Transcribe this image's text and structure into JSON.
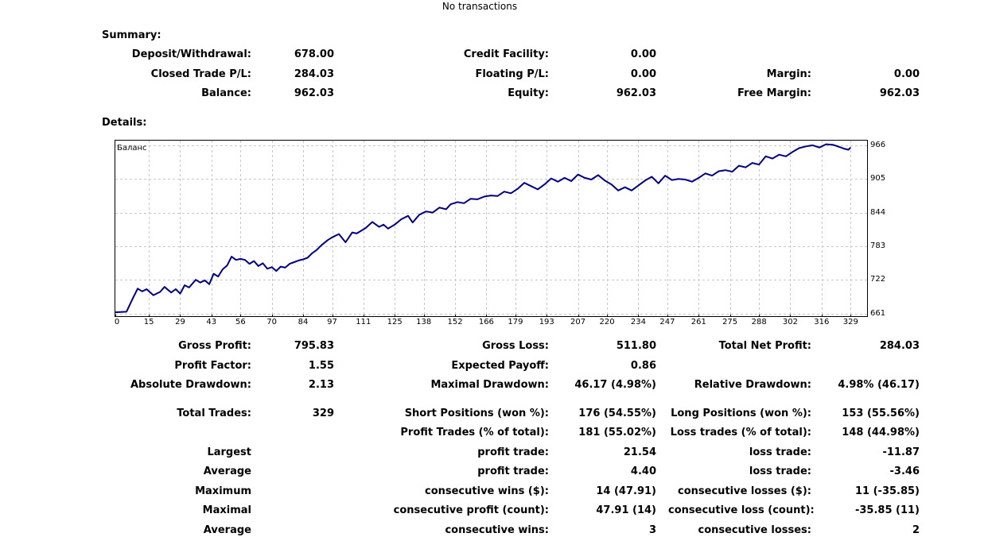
{
  "header": {
    "status": "No transactions"
  },
  "summary": {
    "title": "Summary:",
    "rows": [
      [
        {
          "label": "Deposit/Withdrawal:",
          "value": "678.00"
        },
        {
          "label": "Credit Facility:",
          "value": "0.00"
        },
        {
          "label": "",
          "value": ""
        }
      ],
      [
        {
          "label": "Closed Trade P/L:",
          "value": "284.03"
        },
        {
          "label": "Floating P/L:",
          "value": "0.00"
        },
        {
          "label": "Margin:",
          "value": "0.00"
        }
      ],
      [
        {
          "label": "Balance:",
          "value": "962.03"
        },
        {
          "label": "Equity:",
          "value": "962.03"
        },
        {
          "label": "Free Margin:",
          "value": "962.03"
        }
      ]
    ]
  },
  "details": {
    "title": "Details:",
    "rows": [
      [
        {
          "label": "Gross Profit:",
          "value": "795.83"
        },
        {
          "label": "Gross Loss:",
          "value": "511.80"
        },
        {
          "label": "Total Net Profit:",
          "value": "284.03"
        }
      ],
      [
        {
          "label": "Profit Factor:",
          "value": "1.55"
        },
        {
          "label": "Expected Payoff:",
          "value": "0.86"
        },
        {
          "label": "",
          "value": ""
        }
      ],
      [
        {
          "label": "Absolute Drawdown:",
          "value": "2.13"
        },
        {
          "label": "Maximal Drawdown:",
          "value": "46.17 (4.98%)"
        },
        {
          "label": "Relative Drawdown:",
          "value": "4.98% (46.17)"
        }
      ],
      [
        {
          "label": "Total Trades:",
          "value": "329"
        },
        {
          "label": "Short Positions (won %):",
          "value": "176 (54.55%)"
        },
        {
          "label": "Long Positions (won %):",
          "value": "153 (55.56%)"
        }
      ],
      [
        {
          "label": "",
          "value": ""
        },
        {
          "label": "Profit Trades (% of total):",
          "value": "181 (55.02%)"
        },
        {
          "label": "Loss trades (% of total):",
          "value": "148 (44.98%)"
        }
      ],
      [
        {
          "label": "Largest",
          "value": ""
        },
        {
          "label": "profit trade:",
          "value": "21.54"
        },
        {
          "label": "loss trade:",
          "value": "-11.87"
        }
      ],
      [
        {
          "label": "Average",
          "value": ""
        },
        {
          "label": "profit trade:",
          "value": "4.40"
        },
        {
          "label": "loss trade:",
          "value": "-3.46"
        }
      ],
      [
        {
          "label": "Maximum",
          "value": ""
        },
        {
          "label": "consecutive wins ($):",
          "value": "14 (47.91)"
        },
        {
          "label": "consecutive losses ($):",
          "value": "11 (-35.85)"
        }
      ],
      [
        {
          "label": "Maximal",
          "value": ""
        },
        {
          "label": "consecutive profit (count):",
          "value": "47.91 (14)"
        },
        {
          "label": "consecutive loss (count):",
          "value": "-35.85 (11)"
        }
      ],
      [
        {
          "label": "Average",
          "value": ""
        },
        {
          "label": "consecutive wins:",
          "value": "3"
        },
        {
          "label": "consecutive losses:",
          "value": "2"
        }
      ]
    ]
  },
  "chart_data": {
    "type": "line",
    "legend": "Баланс",
    "line_color": "#000080",
    "grid": true,
    "xlim": [
      0,
      336
    ],
    "ylim": [
      656,
      976
    ],
    "x_ticks": [
      "0",
      "15",
      "29",
      "43",
      "56",
      "70",
      "84",
      "97",
      "111",
      "125",
      "138",
      "152",
      "166",
      "179",
      "193",
      "207",
      "220",
      "234",
      "247",
      "261",
      "275",
      "288",
      "302",
      "316",
      "329"
    ],
    "y_ticks": [
      "966",
      "905",
      "844",
      "783",
      "722",
      "661"
    ],
    "x": [
      0,
      5,
      8,
      10,
      12,
      14,
      17,
      20,
      22,
      25,
      27,
      29,
      31,
      33,
      36,
      38,
      40,
      42,
      44,
      46,
      48,
      50,
      52,
      54,
      56,
      58,
      60,
      62,
      64,
      66,
      68,
      70,
      72,
      74,
      76,
      78,
      80,
      82,
      84,
      86,
      88,
      90,
      92,
      95,
      97,
      100,
      103,
      106,
      108,
      110,
      112,
      115,
      118,
      120,
      122,
      125,
      128,
      131,
      133,
      136,
      139,
      142,
      145,
      148,
      150,
      153,
      156,
      159,
      162,
      165,
      168,
      171,
      174,
      177,
      180,
      183,
      186,
      189,
      192,
      195,
      198,
      201,
      204,
      207,
      210,
      213,
      216,
      219,
      222,
      225,
      228,
      231,
      234,
      237,
      240,
      243,
      246,
      249,
      252,
      255,
      258,
      261,
      264,
      267,
      270,
      273,
      276,
      279,
      282,
      285,
      288,
      291,
      294,
      297,
      300,
      303,
      306,
      309,
      312,
      315,
      318,
      321,
      324,
      326,
      328,
      329
    ],
    "y": [
      663,
      664,
      690,
      706,
      701,
      705,
      694,
      700,
      709,
      699,
      705,
      697,
      712,
      708,
      722,
      717,
      721,
      714,
      733,
      728,
      741,
      748,
      764,
      758,
      760,
      758,
      751,
      756,
      747,
      752,
      742,
      745,
      738,
      746,
      744,
      751,
      754,
      757,
      759,
      762,
      770,
      776,
      784,
      794,
      799,
      805,
      790,
      808,
      806,
      811,
      816,
      827,
      818,
      822,
      815,
      822,
      832,
      838,
      826,
      840,
      846,
      844,
      853,
      850,
      859,
      863,
      861,
      869,
      868,
      873,
      875,
      874,
      882,
      879,
      887,
      898,
      892,
      886,
      895,
      906,
      900,
      907,
      901,
      913,
      907,
      904,
      912,
      902,
      895,
      884,
      890,
      884,
      893,
      902,
      909,
      897,
      911,
      903,
      905,
      904,
      900,
      907,
      915,
      911,
      919,
      921,
      918,
      929,
      926,
      934,
      931,
      946,
      942,
      949,
      946,
      954,
      961,
      964,
      966,
      962,
      968,
      967,
      963,
      960,
      958,
      962
    ]
  }
}
